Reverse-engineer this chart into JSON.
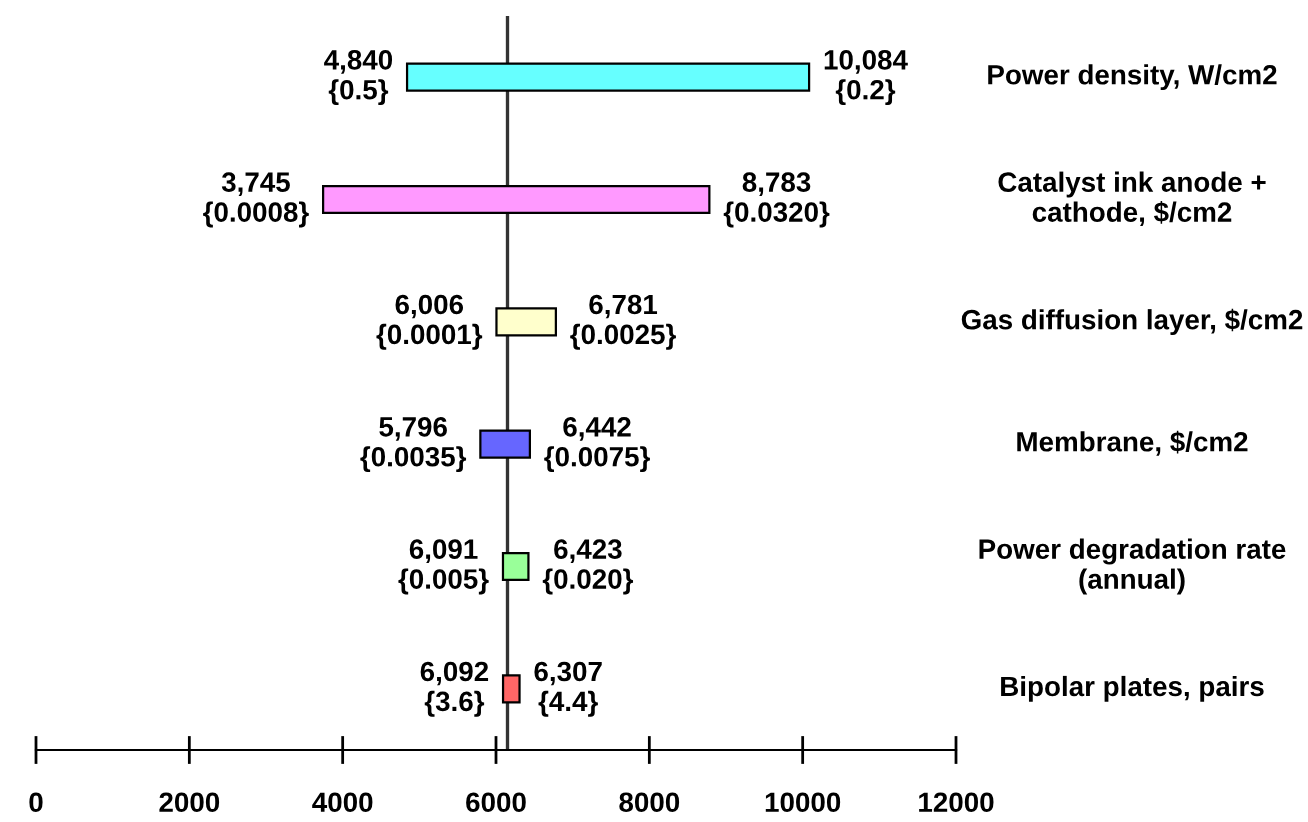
{
  "chart_data": {
    "type": "bar",
    "orientation": "horizontal",
    "categories": [
      "Power density, W/cm2",
      "Catalyst ink anode + cathode, $/cm2",
      "Gas diffusion layer, $/cm2",
      "Membrane, $/cm2",
      "Power degradation rate (annual)",
      "Bipolar plates, pairs"
    ],
    "base": [
      4840,
      3745,
      6006,
      5796,
      6091,
      6092
    ],
    "values": [
      5244,
      5038,
      775,
      646,
      332,
      215
    ],
    "colors": [
      "#66ffff",
      "#ff99ff",
      "#ffffcc",
      "#6666ff",
      "#99ff99",
      "#ff6666"
    ],
    "xlim": [
      0,
      12000
    ],
    "xticks": [
      0,
      2000,
      4000,
      6000,
      8000,
      10000,
      12000
    ],
    "ref_lines": [
      {
        "axis": "x",
        "value": 6150
      }
    ],
    "grid": false,
    "legend": false,
    "annotations": [
      {
        "text": "4,840\n{0.5}",
        "x": 4840,
        "y": "Power density, W/cm2"
      },
      {
        "text": "10,084\n{0.2}",
        "x": 10084,
        "y": "Power density, W/cm2"
      },
      {
        "text": "3,745\n{0.0008}",
        "x": 3745,
        "y": "Catalyst ink anode + cathode, $/cm2"
      },
      {
        "text": "8,783\n{0.0320}",
        "x": 8783,
        "y": "Catalyst ink anode + cathode, $/cm2"
      },
      {
        "text": "6,006\n{0.0001}",
        "x": 6006,
        "y": "Gas diffusion layer, $/cm2"
      },
      {
        "text": "6,781\n{0.0025}",
        "x": 6781,
        "y": "Gas diffusion layer, $/cm2"
      },
      {
        "text": "5,796\n{0.0035}",
        "x": 5796,
        "y": "Membrane, $/cm2"
      },
      {
        "text": "6,442\n{0.0075}",
        "x": 6442,
        "y": "Membrane, $/cm2"
      },
      {
        "text": "6,091\n{0.005}",
        "x": 6091,
        "y": "Power degradation rate (annual)"
      },
      {
        "text": "6,423\n{0.020}",
        "x": 6423,
        "y": "Power degradation rate (annual)"
      },
      {
        "text": "6,092\n{3.6}",
        "x": 6092,
        "y": "Bipolar plates, pairs"
      },
      {
        "text": "6,307\n{4.4}",
        "x": 6307,
        "y": "Bipolar plates, pairs"
      }
    ]
  }
}
